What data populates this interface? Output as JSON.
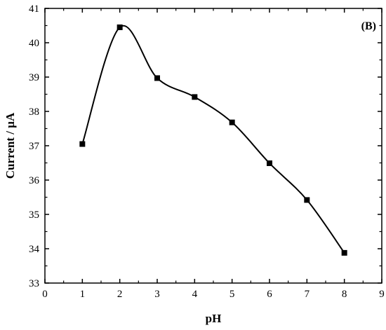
{
  "chart_data": {
    "type": "line",
    "panel_label": "(B)",
    "xlabel": "pH",
    "ylabel": "Current / µA",
    "xlim": [
      0,
      9
    ],
    "ylim": [
      33,
      41
    ],
    "xticks": [
      0,
      1,
      2,
      3,
      4,
      5,
      6,
      7,
      8,
      9
    ],
    "yticks": [
      33,
      34,
      35,
      36,
      37,
      38,
      39,
      40,
      41
    ],
    "grid": false,
    "smoothed_line": true,
    "marker": "square",
    "color": "#000000",
    "series": [
      {
        "x": [
          1,
          2,
          3,
          4,
          5,
          6,
          7,
          8
        ],
        "y": [
          37.05,
          40.45,
          38.97,
          38.42,
          37.68,
          36.49,
          35.42,
          33.88
        ]
      }
    ]
  }
}
